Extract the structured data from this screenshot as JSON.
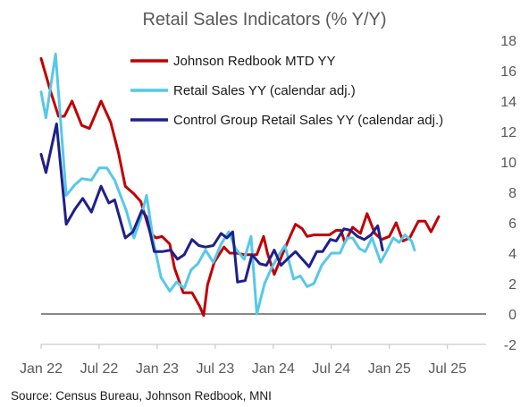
{
  "chart_data": {
    "type": "line",
    "title": "Retail Sales Indicators (% Y/Y)",
    "source": "Source: Census Bureau, Johnson Redbook, MNI",
    "ylim": [
      -2,
      18
    ],
    "yticks": [
      -2,
      0,
      2,
      4,
      6,
      8,
      10,
      12,
      14,
      16,
      18
    ],
    "xlim": [
      0,
      46
    ],
    "xticks": [
      {
        "label": "Jan 22",
        "x": 0
      },
      {
        "label": "Jul 22",
        "x": 6
      },
      {
        "label": "Jan 23",
        "x": 12
      },
      {
        "label": "Jul 23",
        "x": 18
      },
      {
        "label": "Jan 24",
        "x": 24
      },
      {
        "label": "Jul 24",
        "x": 30
      },
      {
        "label": "Jan 25",
        "x": 36
      },
      {
        "label": "Jul 25",
        "x": 42
      }
    ],
    "grid": false,
    "legend_position": "top-left",
    "series": [
      {
        "name": "Johnson Redbook MTD YY",
        "color": "#c00000",
        "points": [
          [
            0,
            16.8
          ],
          [
            1,
            14.6
          ],
          [
            1.8,
            13.0
          ],
          [
            2.4,
            13.0
          ],
          [
            3.2,
            14.0
          ],
          [
            4.2,
            12.4
          ],
          [
            5.0,
            12.2
          ],
          [
            6.2,
            14.0
          ],
          [
            7.2,
            12.6
          ],
          [
            8.0,
            10.6
          ],
          [
            8.7,
            8.4
          ],
          [
            9.6,
            7.9
          ],
          [
            10.3,
            7.4
          ],
          [
            11.3,
            5.3
          ],
          [
            11.9,
            5.0
          ],
          [
            12.5,
            5.1
          ],
          [
            13.3,
            4.6
          ],
          [
            13.8,
            3.0
          ],
          [
            14.7,
            1.4
          ],
          [
            15.6,
            1.4
          ],
          [
            16.4,
            0.5
          ],
          [
            16.8,
            -0.1
          ],
          [
            17.2,
            1.9
          ],
          [
            17.9,
            3.4
          ],
          [
            18.9,
            4.4
          ],
          [
            19.5,
            4.0
          ],
          [
            20.2,
            4.0
          ],
          [
            21.0,
            3.9
          ],
          [
            21.8,
            3.9
          ],
          [
            22.3,
            3.9
          ],
          [
            23.0,
            5.1
          ],
          [
            23.4,
            4.0
          ],
          [
            24.1,
            2.6
          ],
          [
            24.8,
            3.7
          ],
          [
            25.6,
            4.9
          ],
          [
            26.3,
            5.9
          ],
          [
            27.0,
            5.6
          ],
          [
            27.5,
            5.1
          ],
          [
            28.2,
            5.2
          ],
          [
            29.0,
            5.2
          ],
          [
            29.8,
            5.2
          ],
          [
            30.5,
            5.5
          ],
          [
            31.0,
            5.5
          ],
          [
            31.4,
            4.7
          ],
          [
            32.2,
            5.7
          ],
          [
            33.0,
            5.3
          ],
          [
            33.7,
            6.6
          ],
          [
            34.5,
            5.3
          ],
          [
            35.2,
            4.9
          ],
          [
            36.0,
            5.1
          ],
          [
            36.7,
            6.0
          ],
          [
            37.4,
            4.8
          ],
          [
            38.1,
            5.0
          ],
          [
            39.0,
            6.1
          ],
          [
            39.7,
            6.1
          ],
          [
            40.3,
            5.4
          ],
          [
            41.1,
            6.4
          ]
        ]
      },
      {
        "name": "Retail Sales YY (calendar adj.)",
        "color": "#56c8e8",
        "points": [
          [
            0,
            14.6
          ],
          [
            0.5,
            12.9
          ],
          [
            1.5,
            17.1
          ],
          [
            2.6,
            7.8
          ],
          [
            3.5,
            8.5
          ],
          [
            4.2,
            8.9
          ],
          [
            5.2,
            8.8
          ],
          [
            6.0,
            9.6
          ],
          [
            6.8,
            9.6
          ],
          [
            7.6,
            8.8
          ],
          [
            8.8,
            6.8
          ],
          [
            9.6,
            5.0
          ],
          [
            10.3,
            6.3
          ],
          [
            10.9,
            7.8
          ],
          [
            11.6,
            4.8
          ],
          [
            12.4,
            2.4
          ],
          [
            13.3,
            1.5
          ],
          [
            14.0,
            2.1
          ],
          [
            14.8,
            1.7
          ],
          [
            15.5,
            2.9
          ],
          [
            16.2,
            3.3
          ],
          [
            17.0,
            4.2
          ],
          [
            17.8,
            3.4
          ],
          [
            18.6,
            4.6
          ],
          [
            19.4,
            5.4
          ],
          [
            20.1,
            4.3
          ],
          [
            21.0,
            3.6
          ],
          [
            21.7,
            5.1
          ],
          [
            22.3,
            0.0
          ],
          [
            23.1,
            2.0
          ],
          [
            23.8,
            3.0
          ],
          [
            24.6,
            3.9
          ],
          [
            25.2,
            4.5
          ],
          [
            26.1,
            2.3
          ],
          [
            26.8,
            2.5
          ],
          [
            27.5,
            1.8
          ],
          [
            28.2,
            2.0
          ],
          [
            29.0,
            3.2
          ],
          [
            30.0,
            4.0
          ],
          [
            30.9,
            4.0
          ],
          [
            31.6,
            5.0
          ],
          [
            32.2,
            5.0
          ],
          [
            32.9,
            4.3
          ],
          [
            33.5,
            4.1
          ],
          [
            34.2,
            5.0
          ],
          [
            35.1,
            3.4
          ],
          [
            35.7,
            4.1
          ],
          [
            36.4,
            5.0
          ],
          [
            37.0,
            4.7
          ],
          [
            37.6,
            5.2
          ],
          [
            38.3,
            4.8
          ],
          [
            38.6,
            4.2
          ]
        ]
      },
      {
        "name": "Control Group Retail Sales YY (calendar adj.)",
        "color": "#1f1f8a",
        "points": [
          [
            0,
            10.5
          ],
          [
            0.5,
            9.3
          ],
          [
            1.6,
            12.5
          ],
          [
            2.6,
            5.9
          ],
          [
            3.5,
            6.9
          ],
          [
            4.3,
            7.6
          ],
          [
            5.2,
            6.7
          ],
          [
            6.2,
            8.4
          ],
          [
            7.0,
            7.3
          ],
          [
            7.6,
            7.5
          ],
          [
            8.7,
            5.0
          ],
          [
            9.5,
            5.4
          ],
          [
            10.4,
            6.8
          ],
          [
            10.9,
            6.4
          ],
          [
            11.7,
            4.1
          ],
          [
            12.5,
            4.1
          ],
          [
            13.4,
            4.2
          ],
          [
            14.1,
            3.6
          ],
          [
            14.8,
            3.9
          ],
          [
            15.6,
            4.9
          ],
          [
            16.3,
            4.5
          ],
          [
            17.0,
            4.4
          ],
          [
            17.8,
            4.5
          ],
          [
            18.6,
            5.3
          ],
          [
            19.2,
            5.0
          ],
          [
            19.8,
            5.4
          ],
          [
            20.3,
            2.1
          ],
          [
            21.1,
            2.2
          ],
          [
            21.8,
            3.9
          ],
          [
            22.6,
            3.3
          ],
          [
            23.3,
            3.2
          ],
          [
            24.1,
            4.2
          ],
          [
            24.8,
            3.2
          ],
          [
            25.6,
            3.7
          ],
          [
            26.3,
            4.1
          ],
          [
            27.0,
            3.6
          ],
          [
            27.7,
            3.1
          ],
          [
            28.5,
            4.1
          ],
          [
            29.1,
            4.1
          ],
          [
            29.9,
            4.9
          ],
          [
            30.5,
            4.8
          ],
          [
            31.3,
            5.6
          ],
          [
            32.0,
            5.5
          ],
          [
            32.7,
            5.1
          ],
          [
            33.4,
            4.9
          ],
          [
            34.1,
            5.2
          ],
          [
            34.8,
            5.8
          ],
          [
            35.3,
            4.2
          ]
        ]
      }
    ]
  }
}
